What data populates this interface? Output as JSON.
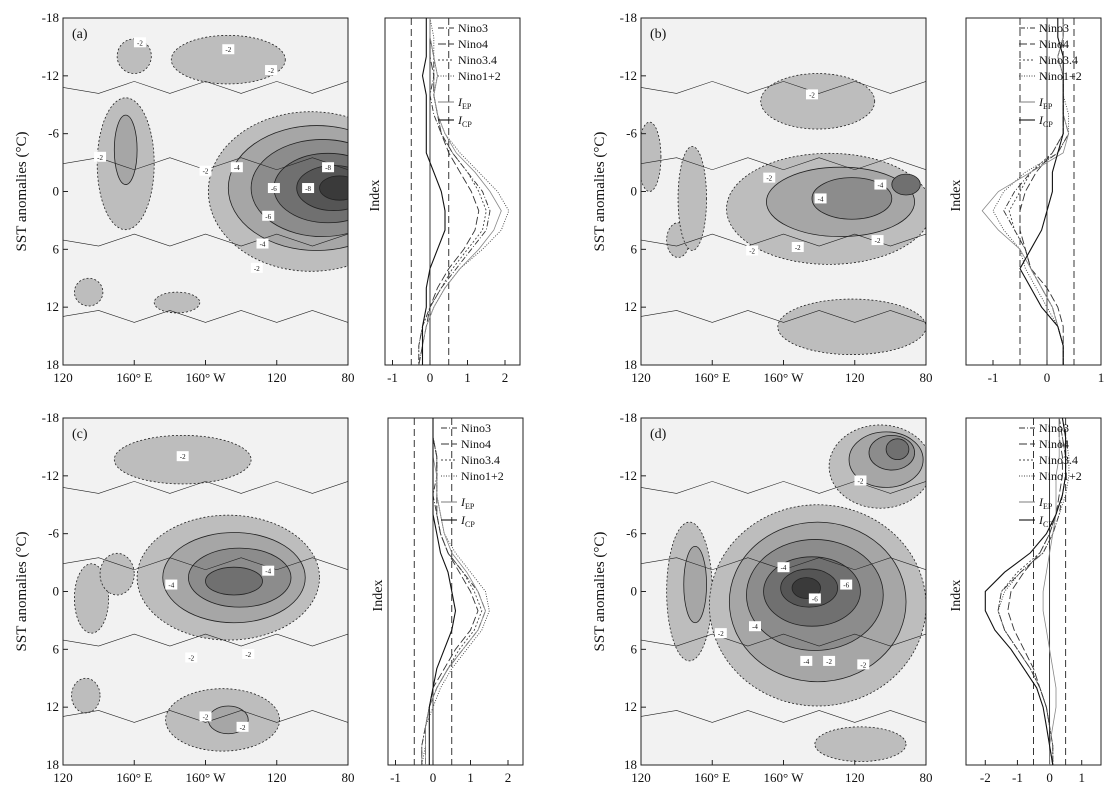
{
  "colors": {
    "background": "#f2f2f2",
    "shades": [
      "#bdbdbd",
      "#a6a6a6",
      "#8c8c8c",
      "#707070",
      "#555555",
      "#3a3a3a"
    ],
    "lines": "#222222"
  },
  "contour_labels": {
    "a": [
      "-2",
      "-2",
      "-2",
      "-2",
      "-2",
      "-4",
      "-6",
      "-8",
      "-8",
      "-6",
      "-4",
      "-2"
    ],
    "b": [
      "-2",
      "-2",
      "-4",
      "-4",
      "-2",
      "-2",
      "-2"
    ],
    "c": [
      "-2",
      "-4",
      "-4",
      "-2",
      "-2",
      "-2",
      "-2"
    ],
    "d": [
      "-2",
      "-4",
      "-6",
      "-6",
      "-4",
      "-2",
      "-2",
      "-4",
      "-2"
    ]
  },
  "panels": [
    {
      "id": "a",
      "label": "(a)",
      "ylabel": "SST anomalies (°C)",
      "index_label": "Index",
      "yticks": [
        "-18",
        "-12",
        "-6",
        "0",
        "6",
        "12",
        "18"
      ],
      "xticks": [
        "120",
        "160° E",
        "160° W",
        "120",
        "80"
      ],
      "index_ticks": [
        "-1",
        "0",
        "1",
        "2"
      ],
      "index_range": [
        -1.2,
        2.4
      ],
      "legend": [
        "Nino3",
        "Nino4",
        "Nino3.4",
        "Nino1+2"
      ],
      "legend_i": {
        "ep": "EP",
        "cp": "CP"
      },
      "index_lines": {
        "threshold": 0.5,
        "series": [
          {
            "key": "nino3",
            "values": [
              0.0,
              0.0,
              0.1,
              0.1,
              0.0,
              0.1,
              0.3,
              0.6,
              1.0,
              1.4,
              1.6,
              1.5,
              1.1,
              0.7,
              0.3,
              0.0,
              -0.2,
              -0.3,
              -0.3
            ]
          },
          {
            "key": "nino4",
            "values": [
              0.0,
              0.0,
              0.0,
              0.1,
              0.1,
              0.2,
              0.3,
              0.5,
              0.8,
              1.1,
              1.3,
              1.2,
              0.9,
              0.5,
              0.2,
              0.0,
              -0.1,
              -0.2,
              -0.3
            ]
          },
          {
            "key": "nino34",
            "values": [
              0.0,
              0.0,
              0.1,
              0.1,
              0.1,
              0.2,
              0.3,
              0.6,
              1.0,
              1.3,
              1.5,
              1.4,
              1.0,
              0.6,
              0.3,
              0.0,
              -0.2,
              -0.3,
              -0.3
            ]
          },
          {
            "key": "nino12",
            "values": [
              0.0,
              0.1,
              0.1,
              0.2,
              0.1,
              0.2,
              0.4,
              0.8,
              1.3,
              1.8,
              2.1,
              1.9,
              1.4,
              0.8,
              0.4,
              0.1,
              -0.1,
              -0.2,
              -0.3
            ]
          },
          {
            "key": "iep",
            "values": [
              0.0,
              0.0,
              0.1,
              0.2,
              0.1,
              0.2,
              0.4,
              0.7,
              1.2,
              1.6,
              1.9,
              1.7,
              1.3,
              0.8,
              0.4,
              0.1,
              -0.1,
              -0.2,
              -0.2
            ]
          },
          {
            "key": "icp",
            "values": [
              -0.1,
              -0.1,
              -0.1,
              -0.2,
              -0.1,
              -0.1,
              -0.1,
              -0.1,
              0.1,
              0.3,
              0.4,
              0.4,
              0.2,
              0.0,
              -0.1,
              -0.1,
              -0.2,
              -0.2,
              -0.2
            ]
          }
        ]
      }
    },
    {
      "id": "b",
      "label": "(b)",
      "ylabel": "SST anomalies (°C)",
      "index_label": "Index",
      "yticks": [
        "-18",
        "-12",
        "-6",
        "0",
        "6",
        "12",
        "18"
      ],
      "xticks": [
        "120",
        "160° E",
        "160° W",
        "120",
        "80"
      ],
      "index_ticks": [
        "-1",
        "0",
        "1"
      ],
      "index_range": [
        -1.5,
        1.0
      ],
      "legend": [
        "Nino3",
        "Nino4",
        "Nino3.4",
        "Nino1+2"
      ],
      "legend_i": {
        "ep": "EP",
        "cp": "CP"
      },
      "index_lines": {
        "threshold": 0.5,
        "series": [
          {
            "key": "nino3",
            "values": [
              0.3,
              0.3,
              0.2,
              0.3,
              0.3,
              0.3,
              0.4,
              0.2,
              -0.3,
              -0.6,
              -0.8,
              -0.6,
              -0.4,
              -0.3,
              -0.1,
              0.1,
              0.2,
              0.3,
              0.3
            ]
          },
          {
            "key": "nino4",
            "values": [
              0.3,
              0.3,
              0.3,
              0.3,
              0.3,
              0.3,
              0.3,
              0.1,
              -0.2,
              -0.4,
              -0.5,
              -0.5,
              -0.4,
              -0.3,
              0.0,
              0.2,
              0.3,
              0.3,
              0.3
            ]
          },
          {
            "key": "nino34",
            "values": [
              0.3,
              0.3,
              0.2,
              0.3,
              0.3,
              0.3,
              0.3,
              0.1,
              -0.3,
              -0.5,
              -0.7,
              -0.6,
              -0.4,
              -0.3,
              -0.1,
              0.1,
              0.2,
              0.3,
              0.3
            ]
          },
          {
            "key": "nino12",
            "values": [
              0.3,
              0.3,
              0.2,
              0.3,
              0.3,
              0.4,
              0.4,
              0.2,
              -0.4,
              -0.8,
              -1.0,
              -0.8,
              -0.5,
              -0.4,
              -0.2,
              0.0,
              0.2,
              0.3,
              0.3
            ]
          },
          {
            "key": "iep",
            "values": [
              0.3,
              0.3,
              0.2,
              0.3,
              0.3,
              0.3,
              0.4,
              0.3,
              -0.3,
              -0.9,
              -1.2,
              -0.9,
              -0.5,
              -0.3,
              -0.1,
              0.1,
              0.2,
              0.3,
              0.3
            ]
          },
          {
            "key": "icp",
            "values": [
              0.2,
              0.2,
              0.3,
              0.3,
              0.3,
              0.3,
              0.3,
              0.2,
              0.1,
              0.1,
              0.0,
              -0.1,
              -0.3,
              -0.5,
              -0.3,
              -0.1,
              0.2,
              0.3,
              0.3
            ]
          }
        ]
      }
    },
    {
      "id": "c",
      "label": "(c)",
      "ylabel": "SST anomalies (°C)",
      "index_label": "Index",
      "yticks": [
        "-18",
        "-12",
        "-6",
        "0",
        "6",
        "12",
        "18"
      ],
      "xticks": [
        "120",
        "160° E",
        "160° W",
        "120",
        "80"
      ],
      "index_ticks": [
        "-1",
        "0",
        "1",
        "2"
      ],
      "index_range": [
        -1.2,
        2.4
      ],
      "legend": [
        "Nino3",
        "Nino4",
        "Nino3.4",
        "Nino1+2"
      ],
      "legend_i": {
        "ep": "EP",
        "cp": "CP"
      },
      "index_lines": {
        "threshold": 0.5,
        "series": [
          {
            "key": "nino3",
            "values": [
              0.0,
              0.0,
              0.1,
              0.1,
              0.0,
              0.1,
              0.2,
              0.4,
              0.8,
              1.2,
              1.4,
              1.2,
              0.8,
              0.4,
              0.1,
              -0.1,
              -0.2,
              -0.3,
              -0.3
            ]
          },
          {
            "key": "nino4",
            "values": [
              0.0,
              0.0,
              0.1,
              0.1,
              0.1,
              0.1,
              0.2,
              0.4,
              0.7,
              1.0,
              1.2,
              1.0,
              0.6,
              0.3,
              0.0,
              -0.1,
              -0.2,
              -0.2,
              -0.2
            ]
          },
          {
            "key": "nino34",
            "values": [
              0.0,
              0.0,
              0.1,
              0.1,
              0.1,
              0.1,
              0.2,
              0.4,
              0.8,
              1.1,
              1.3,
              1.1,
              0.7,
              0.4,
              0.1,
              -0.1,
              -0.2,
              -0.3,
              -0.3
            ]
          },
          {
            "key": "nino12",
            "values": [
              0.0,
              0.0,
              0.1,
              0.1,
              0.1,
              0.2,
              0.3,
              0.6,
              1.0,
              1.4,
              1.5,
              1.3,
              0.9,
              0.5,
              0.2,
              0.0,
              -0.2,
              -0.2,
              -0.3
            ]
          },
          {
            "key": "iep",
            "values": [
              0.0,
              0.0,
              0.0,
              0.1,
              0.1,
              0.2,
              0.3,
              0.5,
              0.9,
              1.2,
              1.4,
              1.2,
              0.8,
              0.4,
              0.1,
              -0.1,
              -0.2,
              -0.2,
              -0.2
            ]
          },
          {
            "key": "icp",
            "values": [
              0.0,
              0.0,
              0.0,
              0.0,
              0.0,
              0.0,
              0.1,
              0.2,
              0.4,
              0.5,
              0.6,
              0.5,
              0.3,
              0.1,
              0.0,
              -0.1,
              -0.1,
              -0.1,
              -0.1
            ]
          }
        ]
      }
    },
    {
      "id": "d",
      "label": "(d)",
      "ylabel": "SST anomalies (°C)",
      "index_label": "Index",
      "yticks": [
        "-18",
        "-12",
        "-6",
        "0",
        "6",
        "12",
        "18"
      ],
      "xticks": [
        "120",
        "160° E",
        "160° W",
        "120",
        "80"
      ],
      "index_ticks": [
        "-2",
        "-1",
        "0",
        "1"
      ],
      "index_range": [
        -2.6,
        1.6
      ],
      "legend": [
        "Nino3",
        "Nino4",
        "Nino3.4",
        "Nino1+2"
      ],
      "legend_i": {
        "ep": "EP",
        "cp": "CP"
      },
      "index_lines": {
        "threshold": 0.5,
        "series": [
          {
            "key": "nino3",
            "values": [
              0.3,
              0.4,
              0.5,
              0.5,
              0.4,
              0.3,
              0.1,
              -0.2,
              -0.9,
              -1.5,
              -1.6,
              -1.4,
              -1.0,
              -0.6,
              -0.3,
              -0.1,
              0.0,
              0.1,
              0.1
            ]
          },
          {
            "key": "nino4",
            "values": [
              0.3,
              0.3,
              0.4,
              0.4,
              0.3,
              0.2,
              0.0,
              -0.3,
              -0.8,
              -1.2,
              -1.3,
              -1.1,
              -0.8,
              -0.5,
              -0.3,
              -0.1,
              0.0,
              0.0,
              0.1
            ]
          },
          {
            "key": "nino34",
            "values": [
              0.3,
              0.4,
              0.5,
              0.5,
              0.4,
              0.2,
              0.0,
              -0.3,
              -1.0,
              -1.5,
              -1.6,
              -1.4,
              -1.0,
              -0.6,
              -0.3,
              -0.1,
              0.0,
              0.1,
              0.1
            ]
          },
          {
            "key": "nino12",
            "values": [
              0.4,
              0.5,
              0.6,
              0.6,
              0.5,
              0.3,
              0.1,
              -0.2,
              -0.9,
              -1.4,
              -1.6,
              -1.4,
              -1.0,
              -0.6,
              -0.3,
              -0.1,
              0.0,
              0.1,
              0.1
            ]
          },
          {
            "key": "iep",
            "values": [
              0.3,
              0.3,
              0.3,
              0.2,
              0.2,
              0.2,
              0.1,
              0.0,
              -0.1,
              -0.2,
              -0.2,
              -0.1,
              0.0,
              0.1,
              0.2,
              0.2,
              0.1,
              0.0,
              0.0
            ]
          },
          {
            "key": "icp",
            "values": [
              0.4,
              0.5,
              0.5,
              0.5,
              0.4,
              0.2,
              -0.1,
              -0.6,
              -1.4,
              -2.0,
              -2.0,
              -1.7,
              -1.2,
              -0.8,
              -0.4,
              -0.2,
              -0.1,
              0.0,
              0.1
            ]
          }
        ]
      }
    }
  ],
  "chart_data": [
    {
      "type": "heatmap",
      "id": "a",
      "xticks": [
        "120",
        "160° E",
        "160° W",
        "120",
        "80"
      ],
      "ylabel": "SST anomalies (°C)",
      "yticks": [
        "-18",
        "-12",
        "-6",
        "0",
        "6",
        "12",
        "18"
      ],
      "ylim": [
        -18,
        18
      ]
    },
    {
      "type": "heatmap",
      "id": "b",
      "xticks": [
        "120",
        "160° E",
        "160° W",
        "120",
        "80"
      ],
      "ylabel": "SST anomalies (°C)",
      "yticks": [
        "-18",
        "-12",
        "-6",
        "0",
        "6",
        "12",
        "18"
      ],
      "ylim": [
        -18,
        18
      ]
    },
    {
      "type": "heatmap",
      "id": "c",
      "xticks": [
        "120",
        "160° E",
        "160° W",
        "120",
        "80"
      ],
      "ylabel": "SST anomalies (°C)",
      "yticks": [
        "-18",
        "-12",
        "-6",
        "0",
        "6",
        "12",
        "18"
      ],
      "ylim": [
        -18,
        18
      ]
    },
    {
      "type": "heatmap",
      "id": "d",
      "xticks": [
        "120",
        "160° E",
        "160° W",
        "120",
        "80"
      ],
      "ylabel": "SST anomalies (°C)",
      "yticks": [
        "-18",
        "-12",
        "-6",
        "0",
        "6",
        "12",
        "18"
      ],
      "ylim": [
        -18,
        18
      ]
    }
  ]
}
